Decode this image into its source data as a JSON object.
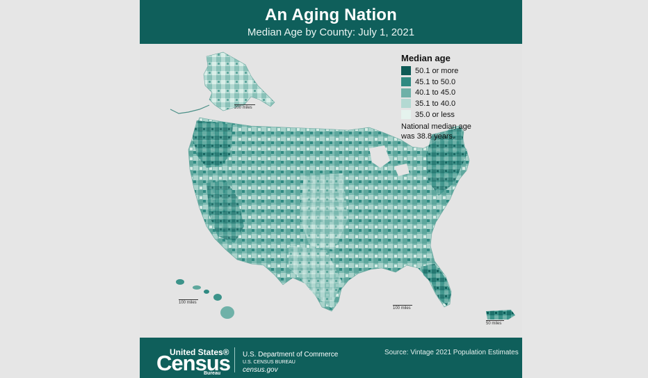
{
  "header": {
    "title": "An Aging Nation",
    "subtitle": "Median Age by County: July 1, 2021"
  },
  "legend": {
    "title": "Median age",
    "items": [
      {
        "label": "50.1 or more",
        "color": "#0d5a56"
      },
      {
        "label": "45.1 to 50.0",
        "color": "#2f8a82"
      },
      {
        "label": "40.1 to 45.0",
        "color": "#6fb1a8"
      },
      {
        "label": "35.1 to 40.0",
        "color": "#b3d9d2"
      },
      {
        "label": "35.0 or less",
        "color": "#e5f3ee"
      }
    ]
  },
  "note": {
    "line1": "National median age",
    "line2": "was 38.8 years."
  },
  "scales": {
    "alaska": "200 miles",
    "hawaii": "100 miles",
    "mainland": "100 miles",
    "puerto_rico": "50 miles"
  },
  "footer": {
    "logo_top": "United States®",
    "logo_main": "Census",
    "logo_bottom": "Bureau",
    "department": "U.S. Department of Commerce",
    "bureau": "U.S. CENSUS BUREAU",
    "website": "census.gov",
    "source": "Source:  Vintage 2021 Population Estimates"
  }
}
